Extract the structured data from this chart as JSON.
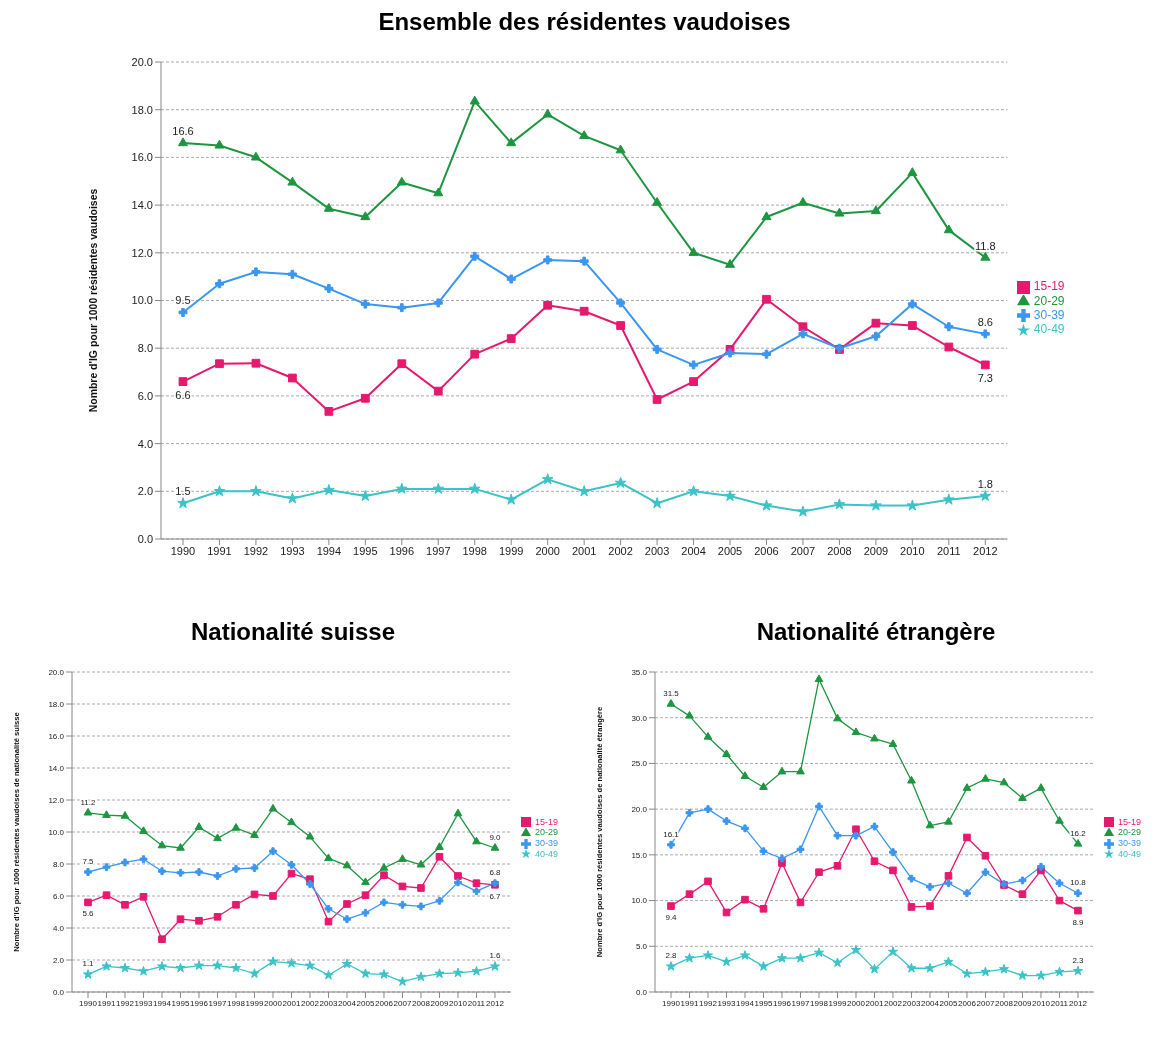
{
  "chart_data": [
    {
      "type": "line",
      "title": "Ensemble des résidentes vaudoises",
      "ylabel": "Nombre d'IG pour 1000 résidentes vaudoises",
      "categories": [
        "1990",
        "1991",
        "1992",
        "1993",
        "1994",
        "1995",
        "1996",
        "1997",
        "1998",
        "1999",
        "2000",
        "2001",
        "2002",
        "2003",
        "2004",
        "2005",
        "2006",
        "2007",
        "2008",
        "2009",
        "2010",
        "2011",
        "2012"
      ],
      "ylim": [
        0,
        20
      ],
      "yticks": [
        {
          "value": 0,
          "label": "0.0"
        },
        {
          "value": 2,
          "label": "2.0"
        },
        {
          "value": 4,
          "label": "4.0"
        },
        {
          "value": 6,
          "label": "6.0"
        },
        {
          "value": 8,
          "label": "8.0"
        },
        {
          "value": 10,
          "label": "10.0"
        },
        {
          "value": 12,
          "label": "12.0"
        },
        {
          "value": 14,
          "label": "14.0"
        },
        {
          "value": 16,
          "label": "16.0"
        },
        {
          "value": 18,
          "label": "18.0"
        },
        {
          "value": 20,
          "label": "20.0"
        }
      ],
      "grid": "y",
      "legend": "right",
      "line_style": "solid",
      "series": [
        {
          "name": "15-19",
          "color": "#e6196e",
          "marker": "square",
          "values": [
            6.6,
            7.35,
            7.37,
            6.75,
            5.35,
            5.9,
            7.35,
            6.2,
            7.75,
            8.4,
            9.8,
            9.55,
            8.95,
            5.85,
            6.6,
            7.95,
            10.05,
            8.9,
            7.95,
            9.05,
            8.95,
            8.05,
            7.3
          ],
          "value_labels": [
            "6.6",
            null,
            null,
            null,
            null,
            null,
            null,
            null,
            null,
            null,
            null,
            null,
            null,
            null,
            null,
            null,
            null,
            null,
            null,
            null,
            null,
            null,
            "7.3"
          ]
        },
        {
          "name": "20-29",
          "color": "#1e9641",
          "marker": "triangle",
          "values": [
            16.6,
            16.5,
            16.0,
            14.95,
            13.85,
            13.5,
            14.95,
            14.5,
            18.35,
            16.6,
            17.8,
            16.9,
            16.3,
            14.1,
            12.0,
            11.5,
            13.5,
            14.1,
            13.65,
            13.75,
            15.35,
            12.95,
            11.8
          ],
          "value_labels": [
            "16.6",
            null,
            null,
            null,
            null,
            null,
            null,
            null,
            null,
            null,
            null,
            null,
            null,
            null,
            null,
            null,
            null,
            null,
            null,
            null,
            null,
            null,
            "11.8"
          ]
        },
        {
          "name": "30-39",
          "color": "#3a96f0",
          "marker": "cross",
          "values": [
            9.5,
            10.7,
            11.2,
            11.1,
            10.5,
            9.85,
            9.7,
            9.9,
            11.85,
            10.9,
            11.7,
            11.65,
            9.9,
            7.95,
            7.3,
            7.8,
            7.75,
            8.6,
            8.0,
            8.5,
            9.85,
            8.9,
            8.6
          ],
          "value_labels": [
            "9.5",
            null,
            null,
            null,
            null,
            null,
            null,
            null,
            null,
            null,
            null,
            null,
            null,
            null,
            null,
            null,
            null,
            null,
            null,
            null,
            null,
            null,
            "8.6"
          ]
        },
        {
          "name": "40-49",
          "color": "#3cc3c8",
          "marker": "star",
          "values": [
            1.5,
            2.0,
            2.0,
            1.7,
            2.05,
            1.8,
            2.1,
            2.1,
            2.1,
            1.65,
            2.5,
            2.0,
            2.35,
            1.5,
            2.0,
            1.8,
            1.4,
            1.15,
            1.45,
            1.4,
            1.4,
            1.65,
            1.8
          ],
          "value_labels": [
            "1.5",
            null,
            null,
            null,
            null,
            null,
            null,
            null,
            null,
            null,
            null,
            null,
            null,
            null,
            null,
            null,
            null,
            null,
            null,
            null,
            null,
            null,
            "1.8"
          ]
        }
      ]
    },
    {
      "type": "line",
      "title": "Nationalité suisse",
      "ylabel": "Nombre d'IG pour 1000 résidentes vaudoises de nationalité suisse",
      "categories": [
        "1990",
        "1991",
        "1992",
        "1993",
        "1994",
        "1995",
        "1996",
        "1997",
        "1998",
        "1999",
        "2000",
        "2001",
        "2002",
        "2003",
        "2004",
        "2005",
        "2006",
        "2007",
        "2008",
        "2009",
        "2010",
        "2011",
        "2012"
      ],
      "ylim": [
        0,
        20
      ],
      "yticks": [
        {
          "value": 0,
          "label": "0.0"
        },
        {
          "value": 2,
          "label": "2.0"
        },
        {
          "value": 4,
          "label": "4.0"
        },
        {
          "value": 6,
          "label": "6.0"
        },
        {
          "value": 8,
          "label": "8.0"
        },
        {
          "value": 10,
          "label": "10.0"
        },
        {
          "value": 12,
          "label": "12.0"
        },
        {
          "value": 14,
          "label": "14.0"
        },
        {
          "value": 16,
          "label": "16.0"
        },
        {
          "value": 18,
          "label": "18.0"
        },
        {
          "value": 20,
          "label": "20.0"
        }
      ],
      "grid": "y",
      "legend": "right",
      "line_style": "solid",
      "series": [
        {
          "name": "15-19",
          "color": "#e6196e",
          "marker": "square",
          "values": [
            5.6,
            6.05,
            5.45,
            5.95,
            3.3,
            4.55,
            4.45,
            4.7,
            5.45,
            6.1,
            6.0,
            7.4,
            7.05,
            4.4,
            5.5,
            6.05,
            7.3,
            6.6,
            6.5,
            8.45,
            7.25,
            6.8,
            6.7
          ],
          "value_labels": [
            "5.6",
            null,
            null,
            null,
            null,
            null,
            null,
            null,
            null,
            null,
            null,
            null,
            null,
            null,
            null,
            null,
            null,
            null,
            null,
            null,
            null,
            null,
            "6.7"
          ]
        },
        {
          "name": "20-29",
          "color": "#1e9641",
          "marker": "triangle",
          "values": [
            11.2,
            11.05,
            11.0,
            10.05,
            9.15,
            9.0,
            10.3,
            9.6,
            10.25,
            9.8,
            11.45,
            10.6,
            9.7,
            8.35,
            7.9,
            6.85,
            7.75,
            8.3,
            7.95,
            9.05,
            11.15,
            9.4,
            9.0
          ],
          "value_labels": [
            "11.2",
            null,
            null,
            null,
            null,
            null,
            null,
            null,
            null,
            null,
            null,
            null,
            null,
            null,
            null,
            null,
            null,
            null,
            null,
            null,
            null,
            null,
            "9.0"
          ]
        },
        {
          "name": "30-39",
          "color": "#3a96f0",
          "marker": "cross",
          "values": [
            7.5,
            7.8,
            8.1,
            8.3,
            7.55,
            7.45,
            7.5,
            7.25,
            7.7,
            7.75,
            8.8,
            7.95,
            6.75,
            5.2,
            4.55,
            4.95,
            5.6,
            5.45,
            5.35,
            5.7,
            6.85,
            6.3,
            6.8
          ],
          "value_labels": [
            "7.5",
            null,
            null,
            null,
            null,
            null,
            null,
            null,
            null,
            null,
            null,
            null,
            null,
            null,
            null,
            null,
            null,
            null,
            null,
            null,
            null,
            null,
            "6.8"
          ]
        },
        {
          "name": "40-49",
          "color": "#3cc3c8",
          "marker": "star",
          "values": [
            1.1,
            1.6,
            1.5,
            1.3,
            1.6,
            1.5,
            1.65,
            1.65,
            1.5,
            1.15,
            1.9,
            1.8,
            1.65,
            1.05,
            1.75,
            1.15,
            1.1,
            0.65,
            0.95,
            1.15,
            1.2,
            1.3,
            1.6
          ],
          "value_labels": [
            "1.1",
            null,
            null,
            null,
            null,
            null,
            null,
            null,
            null,
            null,
            null,
            null,
            null,
            null,
            null,
            null,
            null,
            null,
            null,
            null,
            null,
            null,
            "1.6"
          ]
        }
      ]
    },
    {
      "type": "line",
      "title": "Nationalité étrangère",
      "ylabel": "Nombre d'IG pour 1000 résidentes vaudoises de nationalité étrangère",
      "categories": [
        "1990",
        "1991",
        "1992",
        "1993",
        "1994",
        "1995",
        "1996",
        "1997",
        "1998",
        "1999",
        "2000",
        "2001",
        "2002",
        "2003",
        "2004",
        "2005",
        "2006",
        "2007",
        "2008",
        "2009",
        "2010",
        "2011",
        "2012"
      ],
      "ylim": [
        0,
        35
      ],
      "yticks": [
        {
          "value": 0,
          "label": "0.0"
        },
        {
          "value": 5,
          "label": "5.0"
        },
        {
          "value": 10,
          "label": "10.0"
        },
        {
          "value": 15,
          "label": "15.0"
        },
        {
          "value": 20,
          "label": "20.0"
        },
        {
          "value": 25,
          "label": "25.0"
        },
        {
          "value": 30,
          "label": "30.0"
        },
        {
          "value": 35,
          "label": "35.0"
        }
      ],
      "grid": "y",
      "legend": "right",
      "line_style": "solid",
      "series": [
        {
          "name": "15-19",
          "color": "#e6196e",
          "marker": "square",
          "values": [
            9.4,
            10.7,
            12.1,
            8.7,
            10.1,
            9.1,
            14.1,
            9.8,
            13.1,
            13.8,
            17.8,
            14.3,
            13.3,
            9.3,
            9.4,
            12.7,
            16.9,
            14.9,
            11.7,
            10.7,
            13.3,
            10.0,
            8.9
          ],
          "value_labels": [
            "9.4",
            null,
            null,
            null,
            null,
            null,
            null,
            null,
            null,
            null,
            null,
            null,
            null,
            null,
            null,
            null,
            null,
            null,
            null,
            null,
            null,
            null,
            "8.9"
          ]
        },
        {
          "name": "20-29",
          "color": "#1e9641",
          "marker": "triangle",
          "values": [
            31.5,
            30.2,
            27.9,
            26.0,
            23.6,
            22.4,
            24.1,
            24.1,
            34.2,
            29.9,
            28.4,
            27.7,
            27.1,
            23.1,
            18.2,
            18.6,
            22.3,
            23.3,
            22.9,
            21.2,
            22.3,
            18.7,
            16.2
          ],
          "value_labels": [
            "31.5",
            null,
            null,
            null,
            null,
            null,
            null,
            null,
            null,
            null,
            null,
            null,
            null,
            null,
            null,
            null,
            null,
            null,
            null,
            null,
            null,
            null,
            "16.2"
          ]
        },
        {
          "name": "30-39",
          "color": "#3a96f0",
          "marker": "cross",
          "values": [
            16.1,
            19.6,
            20.0,
            18.7,
            17.9,
            15.4,
            14.6,
            15.6,
            20.3,
            17.1,
            17.1,
            18.1,
            15.3,
            12.4,
            11.5,
            11.9,
            10.8,
            13.1,
            11.8,
            12.2,
            13.7,
            11.9,
            10.8
          ],
          "value_labels": [
            "16.1",
            null,
            null,
            null,
            null,
            null,
            null,
            null,
            null,
            null,
            null,
            null,
            null,
            null,
            null,
            null,
            null,
            null,
            null,
            null,
            null,
            null,
            "10.8"
          ]
        },
        {
          "name": "40-49",
          "color": "#3cc3c8",
          "marker": "star",
          "values": [
            2.8,
            3.7,
            4.0,
            3.3,
            4.0,
            2.8,
            3.7,
            3.7,
            4.3,
            3.2,
            4.6,
            2.5,
            4.4,
            2.6,
            2.6,
            3.3,
            2.0,
            2.2,
            2.5,
            1.8,
            1.8,
            2.2,
            2.3
          ],
          "value_labels": [
            "2.8",
            null,
            null,
            null,
            null,
            null,
            null,
            null,
            null,
            null,
            null,
            null,
            null,
            null,
            null,
            null,
            null,
            null,
            null,
            null,
            null,
            null,
            "2.3"
          ]
        }
      ]
    }
  ]
}
